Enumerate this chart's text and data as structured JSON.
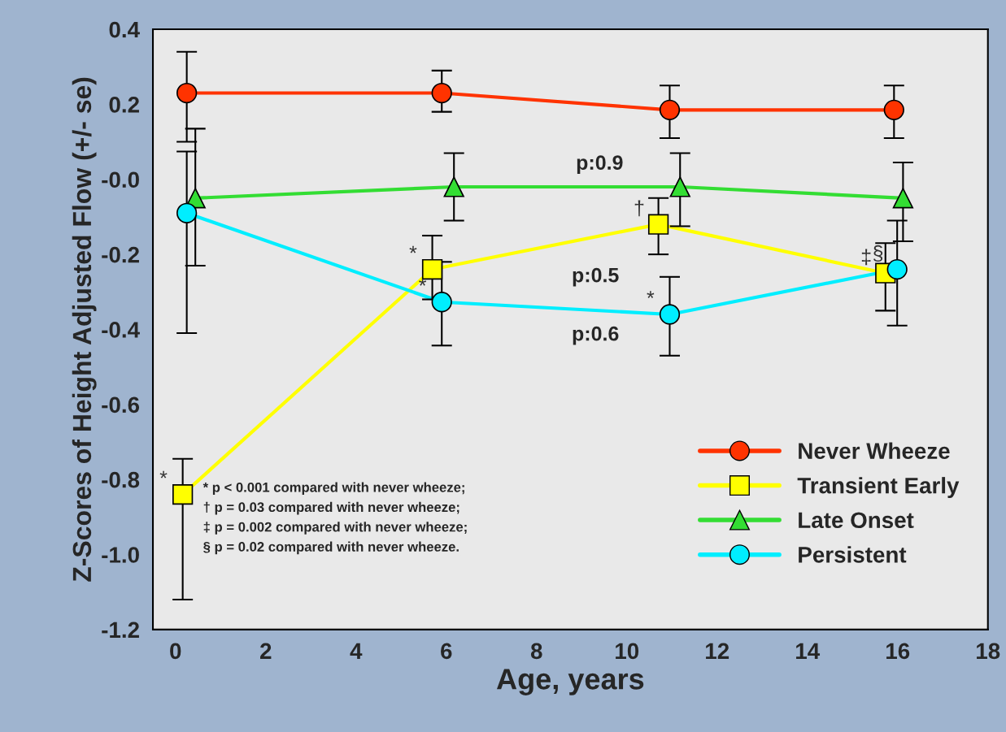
{
  "chart_data": {
    "type": "line",
    "xlabel": "Age, years",
    "ylabel": "Z-Scores of Height Adjusted Flow (+/- se)",
    "xlim": [
      -0.5,
      18
    ],
    "xticks": [
      0,
      2,
      4,
      6,
      8,
      10,
      12,
      14,
      16,
      18
    ],
    "ylim": [
      -1.2,
      0.4
    ],
    "yticks": [
      0.4,
      0.2,
      {
        "value": 0,
        "label": "-0.0"
      },
      -0.2,
      -0.4,
      -0.6,
      -0.8,
      {
        "value": -1.0,
        "label": "-1.0"
      },
      -1.2
    ],
    "grid": false,
    "legend": "bottom right",
    "line_style": "solid",
    "series": [
      {
        "name": "Never Wheeze",
        "color": "#ff3300",
        "marker": "circle",
        "x": [
          0.25,
          5.9,
          10.95,
          15.92
        ],
        "values": [
          0.23,
          0.23,
          0.185,
          0.185
        ],
        "errors": [
          [
            0.1,
            0.34
          ],
          [
            0.18,
            0.29
          ],
          [
            0.11,
            0.25
          ],
          [
            0.11,
            0.25
          ]
        ]
      },
      {
        "name": "Transient Early",
        "color": "#ffff00",
        "marker": "square",
        "x": [
          0.16,
          5.69,
          10.7,
          15.73
        ],
        "values": [
          -0.84,
          -0.24,
          -0.12,
          -0.25
        ],
        "errors": [
          [
            -1.12,
            -0.745
          ],
          [
            -0.32,
            -0.15
          ],
          [
            -0.2,
            -0.05
          ],
          [
            -0.35,
            -0.17
          ]
        ]
      },
      {
        "name": "Late Onset",
        "color": "#33dd33",
        "marker": "triangle",
        "x": [
          0.44,
          6.17,
          11.18,
          16.12
        ],
        "values": [
          -0.05,
          -0.02,
          -0.02,
          -0.05
        ],
        "errors": [
          [
            -0.23,
            0.135
          ],
          [
            -0.11,
            0.07
          ],
          [
            -0.125,
            0.07
          ],
          [
            -0.165,
            0.045
          ]
        ]
      },
      {
        "name": "Persistent",
        "color": "#00eeff",
        "marker": "circle",
        "x": [
          0.25,
          5.9,
          10.95,
          15.99
        ],
        "values": [
          -0.09,
          -0.327,
          -0.36,
          -0.24
        ],
        "errors": [
          [
            -0.41,
            0.074
          ],
          [
            -0.443,
            -0.22
          ],
          [
            -0.47,
            -0.26
          ],
          [
            -0.39,
            -0.11
          ]
        ]
      }
    ],
    "annotations": [
      {
        "text": "*",
        "x": 0.16,
        "y": -0.84
      },
      {
        "text": "*",
        "x": 5.69,
        "y": -0.24
      },
      {
        "text": "*",
        "x": 5.9,
        "y": -0.327
      },
      {
        "text": "*",
        "x": 10.95,
        "y": -0.36
      },
      {
        "text": "†",
        "x": 10.7,
        "y": -0.12
      },
      {
        "text": "‡",
        "x": 15.73,
        "y": -0.25
      },
      {
        "text": "§",
        "x": 15.99,
        "y": -0.24
      },
      "p:0.9",
      "p:0.5",
      "p:0.6",
      "* p < 0.001 compared with never wheeze;",
      "† p = 0.03 compared with never wheeze;",
      "‡ p = 0.002 compared with never wheeze;",
      "§ p = 0.02 compared with never wheeze."
    ]
  }
}
